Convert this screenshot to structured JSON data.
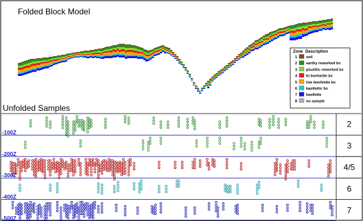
{
  "folded": {
    "title": "Folded Block Model"
  },
  "legend": {
    "header_zone": "Zone",
    "header_desc": "Description",
    "items": [
      {
        "zone": "1",
        "label": "soil",
        "color": "#8b4513"
      },
      {
        "zone": "2",
        "label": "earthy reworked bx",
        "color": "#2e8b2e"
      },
      {
        "zone": "3",
        "label": "pisolitic reworked bx",
        "color": "#7ddc2a"
      },
      {
        "zone": "4",
        "label": "hi boehmite bx",
        "color": "#e52020"
      },
      {
        "zone": "5",
        "label": "low boehmite bx",
        "color": "#ffa500"
      },
      {
        "zone": "6",
        "label": "kaolinitic bx",
        "color": "#20c8d8"
      },
      {
        "zone": "7",
        "label": "kaolinite",
        "color": "#1a1ae6"
      },
      {
        "zone": "8",
        "label": "no sample",
        "color": "#b0b0b0"
      }
    ]
  },
  "unfolded": {
    "title": "Unfolded Samples",
    "bands": [
      {
        "label": "2",
        "depth": "-100Z",
        "color": "#2e8b2e"
      },
      {
        "label": "3",
        "depth": "-200Z",
        "color": "#3a9a3a"
      },
      {
        "label": "4/5",
        "depth": "-300Z",
        "color": "#b01010"
      },
      {
        "label": "6",
        "depth": "-400Z",
        "color": "#1aa0a8"
      },
      {
        "label": "7",
        "depth": "-500Z",
        "color": "#1a1ab0"
      }
    ]
  }
}
